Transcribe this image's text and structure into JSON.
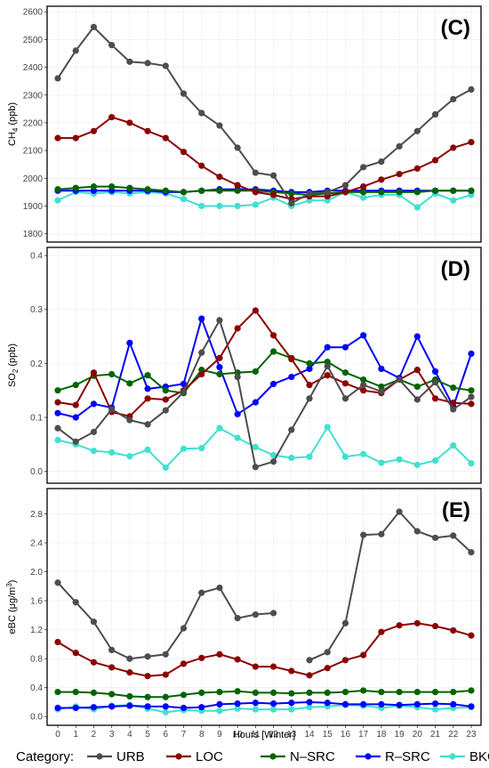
{
  "colors": {
    "URB": "#4d4d4d",
    "LOC": "#8b0000",
    "N-SRC": "#006400",
    "R-SRC": "#0000ff",
    "BKG": "#40e0d0"
  },
  "legend": {
    "title": "Category:",
    "entries": [
      "URB",
      "LOC",
      "N–SRC",
      "R–SRC",
      "BKG"
    ]
  },
  "x_axis": {
    "label": "Hours [Winter]",
    "ticks": [
      "0",
      "1",
      "2",
      "3",
      "4",
      "5",
      "6",
      "7",
      "8",
      "9",
      "10",
      "11",
      "12",
      "13",
      "14",
      "15",
      "16",
      "17",
      "18",
      "19",
      "20",
      "21",
      "22",
      "23"
    ]
  },
  "chart_data": [
    {
      "type": "line",
      "panel_label": "(C)",
      "ylabel_main": "CH",
      "ylabel_sub": "4",
      "ylabel_rest": " (ppb)",
      "ylim": [
        1770,
        2620
      ],
      "yticks": [
        1800,
        1900,
        2000,
        2100,
        2200,
        2300,
        2400,
        2500,
        2600
      ],
      "ytick_labels": [
        "1800",
        "1900",
        "2000",
        "2100",
        "2200",
        "2300",
        "2400",
        "2500",
        "2600"
      ],
      "x": [
        0,
        1,
        2,
        3,
        4,
        5,
        6,
        7,
        8,
        9,
        10,
        11,
        12,
        13,
        14,
        15,
        16,
        17,
        18,
        19,
        20,
        21,
        22,
        23
      ],
      "grid": true,
      "series": [
        {
          "name": "URB",
          "values": [
            2360,
            2460,
            2545,
            2480,
            2420,
            2415,
            2405,
            2305,
            2235,
            2190,
            2110,
            2020,
            2010,
            1910,
            1945,
            1950,
            1975,
            2040,
            2060,
            2115,
            2170,
            2230,
            2285,
            2320
          ]
        },
        {
          "name": "LOC",
          "values": [
            2145,
            2145,
            2170,
            2220,
            2200,
            2170,
            2145,
            2095,
            2045,
            2005,
            1975,
            1950,
            1940,
            1925,
            1935,
            1935,
            1950,
            1970,
            1995,
            2015,
            2035,
            2065,
            2110,
            2130
          ]
        },
        {
          "name": "N-SRC",
          "values": [
            1960,
            1965,
            1970,
            1970,
            1965,
            1960,
            1955,
            1950,
            1955,
            1955,
            1955,
            1955,
            1950,
            1945,
            1940,
            1945,
            1950,
            1950,
            1950,
            1950,
            1950,
            1955,
            1955,
            1955
          ]
        },
        {
          "name": "R-SRC",
          "values": [
            1955,
            1955,
            1955,
            1955,
            1955,
            1955,
            1950,
            1950,
            1955,
            1960,
            1960,
            1960,
            1955,
            1950,
            1950,
            1955,
            1955,
            1955,
            1955,
            1955,
            1955,
            1955,
            1955,
            1955
          ]
        },
        {
          "name": "BKG",
          "values": [
            1920,
            1950,
            1945,
            1950,
            1945,
            1950,
            1945,
            1925,
            1900,
            1900,
            1900,
            1905,
            1930,
            1900,
            1920,
            1920,
            1950,
            1930,
            1940,
            1940,
            1895,
            1945,
            1920,
            1940
          ]
        }
      ]
    },
    {
      "type": "line",
      "panel_label": "(D)",
      "ylabel_main": "SO",
      "ylabel_sub": "2",
      "ylabel_rest": " (ppb)",
      "ylim": [
        -0.022,
        0.415
      ],
      "yticks": [
        0.0,
        0.1,
        0.2,
        0.3,
        0.4
      ],
      "ytick_labels": [
        "0.0",
        "0.1",
        "0.2",
        "0.3",
        "0.4"
      ],
      "x": [
        0,
        1,
        2,
        3,
        4,
        5,
        6,
        7,
        8,
        9,
        10,
        11,
        12,
        13,
        14,
        15,
        16,
        17,
        18,
        19,
        20,
        21,
        22,
        23
      ],
      "grid": true,
      "series": [
        {
          "name": "URB",
          "values": [
            0.08,
            0.055,
            0.073,
            0.115,
            0.095,
            0.087,
            0.113,
            0.147,
            0.22,
            0.28,
            0.175,
            0.008,
            0.018,
            0.077,
            0.135,
            0.195,
            0.135,
            0.16,
            0.148,
            0.17,
            0.133,
            0.165,
            0.115,
            0.138
          ]
        },
        {
          "name": "LOC",
          "values": [
            0.128,
            0.123,
            0.183,
            0.11,
            0.102,
            0.135,
            0.133,
            0.15,
            0.18,
            0.21,
            0.265,
            0.298,
            0.252,
            0.208,
            0.16,
            0.178,
            0.163,
            0.15,
            0.145,
            0.17,
            0.188,
            0.135,
            0.127,
            0.125
          ]
        },
        {
          "name": "N-SRC",
          "values": [
            0.15,
            0.16,
            0.177,
            0.18,
            0.163,
            0.178,
            0.15,
            0.145,
            0.188,
            0.18,
            0.183,
            0.185,
            0.222,
            0.21,
            0.2,
            0.203,
            0.183,
            0.17,
            0.157,
            0.17,
            0.157,
            0.17,
            0.155,
            0.15
          ]
        },
        {
          "name": "R-SRC",
          "values": [
            0.108,
            0.1,
            0.125,
            0.118,
            0.238,
            0.153,
            0.157,
            0.162,
            0.283,
            0.193,
            0.106,
            0.128,
            0.162,
            0.175,
            0.19,
            0.23,
            0.23,
            0.252,
            0.19,
            0.173,
            0.25,
            0.185,
            0.12,
            0.218
          ]
        },
        {
          "name": "BKG",
          "values": [
            0.058,
            0.05,
            0.038,
            0.035,
            0.028,
            0.04,
            0.007,
            0.042,
            0.043,
            0.08,
            0.062,
            0.045,
            0.03,
            0.025,
            0.027,
            0.082,
            0.027,
            0.032,
            0.016,
            0.022,
            0.012,
            0.02,
            0.048,
            0.015
          ]
        }
      ]
    },
    {
      "type": "line",
      "panel_label": "(E)",
      "ylabel_main": "eBC (μg/m",
      "ylabel_sub": "3",
      "ylabel_rest": ")",
      "ylim": [
        -0.12,
        3.15
      ],
      "yticks": [
        0.0,
        0.4,
        0.8,
        1.2,
        1.6,
        2.0,
        2.4,
        2.8
      ],
      "ytick_labels": [
        "0.0",
        "0.4",
        "0.8",
        "1.2",
        "1.6",
        "2.0",
        "2.4",
        "2.8"
      ],
      "x": [
        0,
        1,
        2,
        3,
        4,
        5,
        6,
        7,
        8,
        9,
        10,
        11,
        12,
        13,
        14,
        15,
        16,
        17,
        18,
        19,
        20,
        21,
        22,
        23
      ],
      "grid": true,
      "series": [
        {
          "name": "URB",
          "values": [
            1.85,
            1.58,
            1.31,
            0.92,
            0.8,
            0.83,
            0.86,
            1.22,
            1.71,
            1.78,
            1.36,
            1.41,
            1.43,
            null,
            0.78,
            0.89,
            1.29,
            2.51,
            2.52,
            2.83,
            2.56,
            2.47,
            2.5,
            2.27
          ]
        },
        {
          "name": "LOC",
          "values": [
            1.03,
            0.88,
            0.75,
            0.68,
            0.61,
            0.56,
            0.58,
            0.73,
            0.81,
            0.86,
            0.79,
            0.69,
            0.69,
            0.63,
            0.57,
            0.67,
            0.78,
            0.85,
            1.17,
            1.26,
            1.29,
            1.25,
            1.19,
            1.12
          ]
        },
        {
          "name": "N-SRC",
          "values": [
            0.34,
            0.34,
            0.33,
            0.31,
            0.28,
            0.27,
            0.27,
            0.3,
            0.33,
            0.34,
            0.35,
            0.33,
            0.33,
            0.32,
            0.33,
            0.33,
            0.34,
            0.36,
            0.34,
            0.34,
            0.34,
            0.34,
            0.34,
            0.36
          ]
        },
        {
          "name": "R-SRC",
          "values": [
            0.12,
            0.12,
            0.13,
            0.14,
            0.15,
            0.14,
            0.14,
            0.12,
            0.13,
            0.17,
            0.18,
            0.19,
            0.18,
            0.19,
            0.2,
            0.19,
            0.17,
            0.17,
            0.17,
            0.16,
            0.17,
            0.18,
            0.17,
            0.14
          ]
        },
        {
          "name": "BKG",
          "values": [
            0.1,
            0.14,
            0.1,
            0.15,
            0.16,
            0.11,
            0.06,
            0.09,
            0.08,
            0.08,
            0.11,
            0.1,
            0.1,
            0.1,
            0.13,
            0.14,
            0.16,
            0.15,
            0.12,
            0.15,
            0.13,
            0.1,
            0.12,
            0.13
          ]
        }
      ]
    }
  ]
}
